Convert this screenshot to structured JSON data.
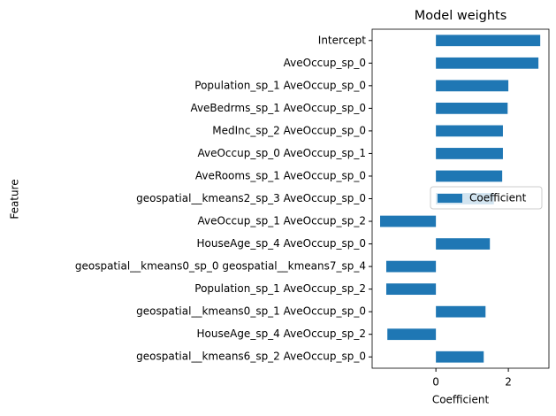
{
  "chart_data": {
    "type": "barh",
    "title": "Model weights",
    "x_label": "Coefficient",
    "y_label": "Feature",
    "categories": [
      "Intercept",
      "AveOccup_sp_0",
      "Population_sp_1 AveOccup_sp_0",
      "AveBedrms_sp_1 AveOccup_sp_0",
      "MedInc_sp_2 AveOccup_sp_0",
      "AveOccup_sp_0 AveOccup_sp_1",
      "AveRooms_sp_1 AveOccup_sp_0",
      "geospatial__kmeans2_sp_3 AveOccup_sp_0",
      "AveOccup_sp_1 AveOccup_sp_2",
      "HouseAge_sp_4 AveOccup_sp_0",
      "geospatial__kmeans0_sp_0 geospatial__kmeans7_sp_4",
      "Population_sp_1 AveOccup_sp_2",
      "geospatial__kmeans0_sp_1 AveOccup_sp_0",
      "HouseAge_sp_4 AveOccup_sp_2",
      "geospatial__kmeans6_sp_2 AveOccup_sp_0"
    ],
    "series": [
      {
        "name": "Coefficient",
        "color": "#1f77b4",
        "values": [
          2.88,
          2.83,
          2.0,
          1.98,
          1.85,
          1.85,
          1.83,
          1.6,
          -1.54,
          1.49,
          -1.37,
          -1.37,
          1.37,
          -1.34,
          1.32
        ]
      }
    ],
    "xlim": [
      -1.76,
      3.12
    ],
    "xticks": [
      0,
      2
    ],
    "legend": "center right"
  }
}
